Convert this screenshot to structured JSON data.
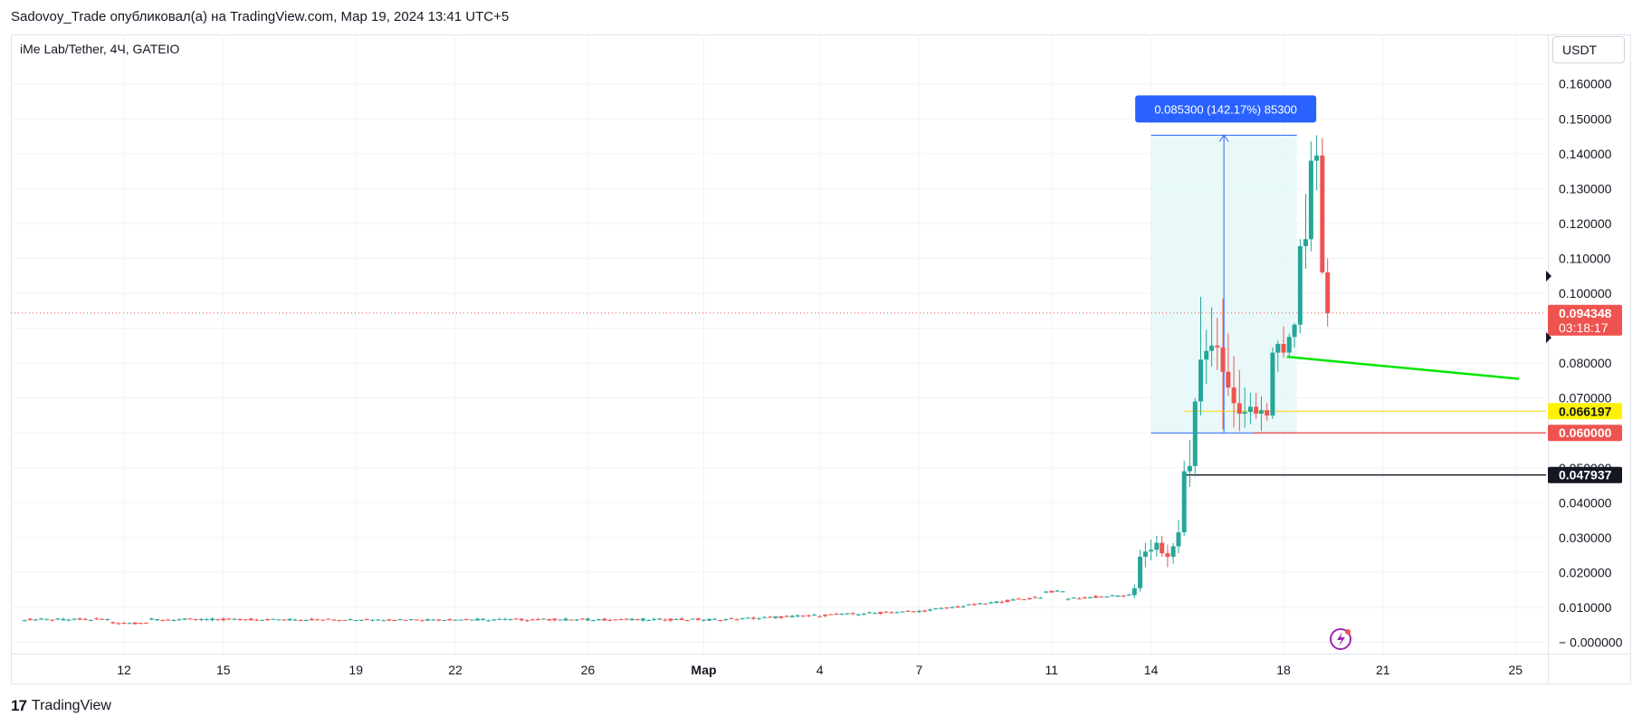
{
  "header": {
    "publish_line": "Sadovoy_Trade опубликовал(а) на TradingView.com, Мар 19, 2024 13:41 UTC+5"
  },
  "symbol": {
    "title": "iMe Lab/Tether, 4Ч, GATEIO"
  },
  "currency_button": "USDT",
  "footer": {
    "brand": "TradingView",
    "logo_mark": "17"
  },
  "colors": {
    "up": "#26a69a",
    "down": "#ef5350",
    "measure_fill": "#e3f7f7",
    "measure_border": "#2962ff",
    "measure_label_bg": "#2962ff",
    "trendline": "#00e600",
    "yellow_line": "#f5e04a",
    "red_line": "#ef5350",
    "black_line": "#131722",
    "grid": "#f0f3fa",
    "current_price_line": "#ef5350"
  },
  "chart_data": {
    "type": "candlestick",
    "ylim": [
      -0.005,
      0.166
    ],
    "x_tick_labels": [
      "12",
      "15",
      "19",
      "22",
      "26",
      "Мар",
      "4",
      "7",
      "11",
      "14",
      "18",
      "21",
      "25"
    ],
    "x_tick_days": [
      12,
      15,
      19,
      22,
      26,
      29.5,
      33,
      36,
      40,
      43,
      47,
      50,
      54
    ],
    "y_ticks": [
      -0.0,
      0.01,
      0.02,
      0.03,
      0.04,
      0.05,
      0.06,
      0.07,
      0.08,
      0.09,
      0.1,
      0.11,
      0.12,
      0.13,
      0.14,
      0.15,
      0.16
    ],
    "y_tick_labels": [
      "− 0.000000",
      "0.010000",
      "0.020000",
      "0.030000",
      "0.040000",
      "0.050000",
      "0.060000",
      "0.070000",
      "0.080000",
      "0.090000",
      "0.100000",
      "0.110000",
      "0.120000",
      "0.130000",
      "0.140000",
      "0.150000",
      "0.160000"
    ],
    "current_price": {
      "value": 0.094348,
      "label": "0.094348",
      "countdown": "03:18:17"
    },
    "price_tags": [
      {
        "value": 0.066197,
        "label": "0.066197",
        "bg": "#fff200",
        "fg": "#131722"
      },
      {
        "value": 0.06,
        "label": "0.060000",
        "bg": "#ef5350",
        "fg": "#ffffff"
      },
      {
        "value": 0.047937,
        "label": "0.047937",
        "bg": "#131722",
        "fg": "#ffffff"
      }
    ],
    "measure": {
      "label": "0.085300 (142.17%) 85300",
      "from_day": 43.0,
      "to_day": 47.4,
      "low": 0.06,
      "high": 0.1453
    },
    "trendline": {
      "from_day": 47.1,
      "from_value": 0.0818,
      "to_day": 54.1,
      "to_value": 0.0755
    },
    "hlines": [
      {
        "value": 0.066197,
        "from_day": 44.0,
        "color": "#f5e04a"
      },
      {
        "value": 0.06,
        "from_day": 46.1,
        "color": "#ef5350"
      },
      {
        "value": 0.047937,
        "from_day": 44.0,
        "color": "#131722"
      }
    ],
    "candles_late": [
      {
        "d": 42.5,
        "o": 0.0135,
        "h": 0.0165,
        "l": 0.0125,
        "c": 0.0155
      },
      {
        "d": 42.67,
        "o": 0.0155,
        "h": 0.0265,
        "l": 0.0145,
        "c": 0.0245
      },
      {
        "d": 42.83,
        "o": 0.0245,
        "h": 0.0285,
        "l": 0.0215,
        "c": 0.026
      },
      {
        "d": 43.0,
        "o": 0.026,
        "h": 0.0295,
        "l": 0.0235,
        "c": 0.0265
      },
      {
        "d": 43.17,
        "o": 0.0265,
        "h": 0.0305,
        "l": 0.0245,
        "c": 0.0285
      },
      {
        "d": 43.33,
        "o": 0.0285,
        "h": 0.0305,
        "l": 0.0245,
        "c": 0.0255
      },
      {
        "d": 43.5,
        "o": 0.0255,
        "h": 0.028,
        "l": 0.0215,
        "c": 0.0245
      },
      {
        "d": 43.67,
        "o": 0.0245,
        "h": 0.0285,
        "l": 0.0225,
        "c": 0.0275
      },
      {
        "d": 43.83,
        "o": 0.0275,
        "h": 0.035,
        "l": 0.0255,
        "c": 0.0315
      },
      {
        "d": 44.0,
        "o": 0.0315,
        "h": 0.052,
        "l": 0.0305,
        "c": 0.049
      },
      {
        "d": 44.17,
        "o": 0.049,
        "h": 0.058,
        "l": 0.0445,
        "c": 0.0505
      },
      {
        "d": 44.33,
        "o": 0.0505,
        "h": 0.07,
        "l": 0.0475,
        "c": 0.069
      },
      {
        "d": 44.5,
        "o": 0.069,
        "h": 0.099,
        "l": 0.065,
        "c": 0.081
      },
      {
        "d": 44.67,
        "o": 0.081,
        "h": 0.0895,
        "l": 0.074,
        "c": 0.0835
      },
      {
        "d": 44.83,
        "o": 0.0835,
        "h": 0.096,
        "l": 0.079,
        "c": 0.085
      },
      {
        "d": 45.0,
        "o": 0.085,
        "h": 0.093,
        "l": 0.078,
        "c": 0.0845
      },
      {
        "d": 45.17,
        "o": 0.0845,
        "h": 0.0985,
        "l": 0.061,
        "c": 0.0775
      },
      {
        "d": 45.33,
        "o": 0.0775,
        "h": 0.0885,
        "l": 0.0705,
        "c": 0.073
      },
      {
        "d": 45.5,
        "o": 0.073,
        "h": 0.082,
        "l": 0.0615,
        "c": 0.0685
      },
      {
        "d": 45.67,
        "o": 0.0685,
        "h": 0.078,
        "l": 0.0605,
        "c": 0.0655
      },
      {
        "d": 45.83,
        "o": 0.0655,
        "h": 0.073,
        "l": 0.0615,
        "c": 0.066
      },
      {
        "d": 46.0,
        "o": 0.066,
        "h": 0.0715,
        "l": 0.0625,
        "c": 0.0675
      },
      {
        "d": 46.17,
        "o": 0.0675,
        "h": 0.0715,
        "l": 0.064,
        "c": 0.0655
      },
      {
        "d": 46.33,
        "o": 0.0655,
        "h": 0.0705,
        "l": 0.0605,
        "c": 0.0665
      },
      {
        "d": 46.5,
        "o": 0.0665,
        "h": 0.0685,
        "l": 0.0635,
        "c": 0.065
      },
      {
        "d": 46.67,
        "o": 0.065,
        "h": 0.0845,
        "l": 0.064,
        "c": 0.083
      },
      {
        "d": 46.83,
        "o": 0.083,
        "h": 0.0865,
        "l": 0.0775,
        "c": 0.0855
      },
      {
        "d": 47.0,
        "o": 0.0855,
        "h": 0.0905,
        "l": 0.0815,
        "c": 0.083
      },
      {
        "d": 47.17,
        "o": 0.083,
        "h": 0.0885,
        "l": 0.0815,
        "c": 0.0875
      },
      {
        "d": 47.33,
        "o": 0.0875,
        "h": 0.0915,
        "l": 0.0845,
        "c": 0.091
      },
      {
        "d": 47.5,
        "o": 0.091,
        "h": 0.1155,
        "l": 0.0885,
        "c": 0.1135
      },
      {
        "d": 47.67,
        "o": 0.1135,
        "h": 0.1285,
        "l": 0.107,
        "c": 0.1155
      },
      {
        "d": 47.83,
        "o": 0.1155,
        "h": 0.1435,
        "l": 0.112,
        "c": 0.138
      },
      {
        "d": 48.0,
        "o": 0.138,
        "h": 0.1453,
        "l": 0.1295,
        "c": 0.1395
      },
      {
        "d": 48.17,
        "o": 0.1395,
        "h": 0.1445,
        "l": 0.1055,
        "c": 0.106
      },
      {
        "d": 48.33,
        "o": 0.106,
        "h": 0.11,
        "l": 0.0905,
        "c": 0.0943
      }
    ]
  }
}
